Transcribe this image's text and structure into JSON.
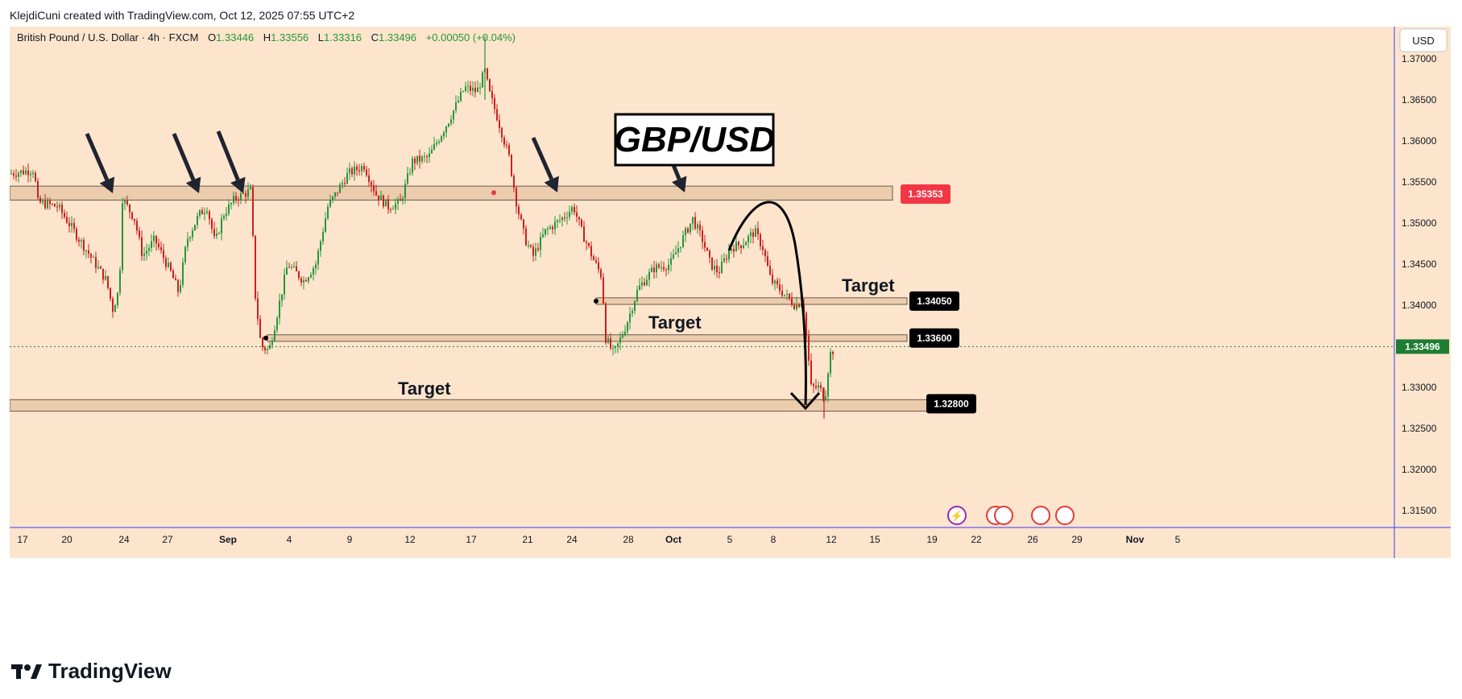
{
  "header": {
    "credit": "KlejdiCuni created with TradingView.com, Oct 12, 2025 07:55 UTC+2"
  },
  "legend": {
    "symbol": "British Pound / U.S. Dollar · 4h · FXCM",
    "open_label": "O",
    "open": "1.33446",
    "high_label": "H",
    "high": "1.33556",
    "low_label": "L",
    "low": "1.33316",
    "close_label": "C",
    "close": "1.33496",
    "change": "+0.00050 (+0.04%)"
  },
  "currency_button": "USD",
  "title_box": "GBP/USD",
  "brand": {
    "name": "TradingView"
  },
  "colors": {
    "background": "#fce5cc",
    "up": "#26963c",
    "down": "#cc1f1f",
    "zone_fill": "#e8c8a6",
    "zone_border": "#6b5a4a",
    "red_label": "#f23645",
    "price_label": "#1e7d32",
    "black_label": "#000000"
  },
  "chart_data": {
    "type": "candlestick",
    "timeframe": "4h",
    "y_axis": {
      "ticks": [
        "1.37000",
        "1.36500",
        "1.36000",
        "1.35500",
        "1.35000",
        "1.34500",
        "1.34000",
        "1.33500",
        "1.33000",
        "1.32500",
        "1.32000",
        "1.31500"
      ],
      "range": [
        1.313,
        1.3725
      ]
    },
    "x_axis": {
      "ticks": [
        "17",
        "20",
        "24",
        "27",
        "Sep",
        "4",
        "9",
        "12",
        "17",
        "21",
        "24",
        "28",
        "Oct",
        "5",
        "8",
        "12",
        "15",
        "19",
        "22",
        "26",
        "29",
        "Nov",
        "5"
      ]
    },
    "current_price": "1.33496",
    "levels": [
      {
        "name": "resistance",
        "label": "1.35353",
        "value": 1.35353,
        "style": "red"
      },
      {
        "name": "target-1",
        "label": "1.34050",
        "value": 1.3405,
        "style": "black"
      },
      {
        "name": "target-2",
        "label": "1.33600",
        "value": 1.336,
        "style": "black"
      },
      {
        "name": "target-3",
        "label": "1.32800",
        "value": 1.328,
        "style": "black"
      }
    ],
    "annotations": [
      "Target",
      "Target",
      "Target"
    ]
  }
}
